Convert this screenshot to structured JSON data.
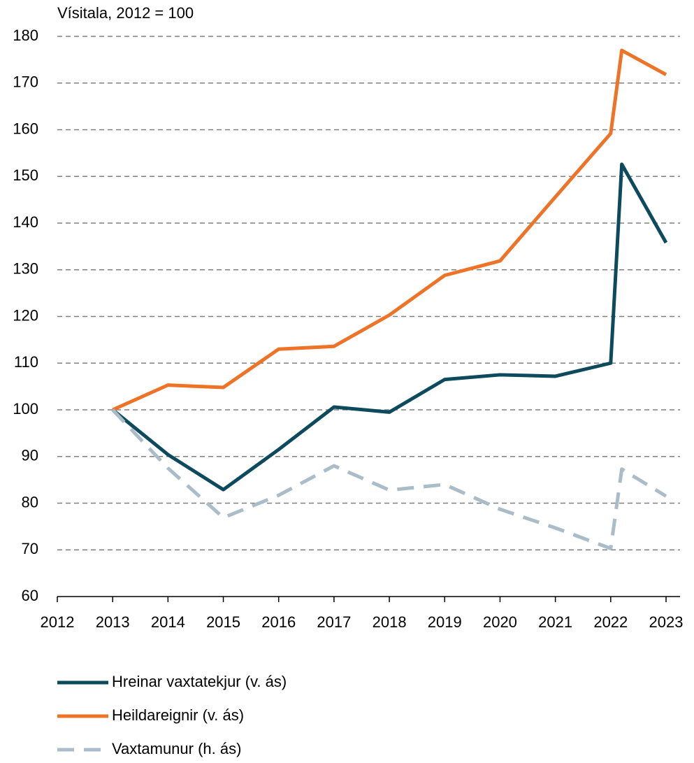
{
  "chart_data": {
    "type": "line",
    "y_axis_label": "Vísitala, 2012 = 100",
    "x": [
      2013,
      2014,
      2015,
      2016,
      2017,
      2018,
      2019,
      2020,
      2021,
      2022,
      2022.2,
      2023
    ],
    "series": [
      {
        "name": "Hreinar vaxtatekjur (v. ás)",
        "color": "#0d4a5e",
        "dash": false,
        "values": [
          100,
          90.4,
          82.9,
          91.5,
          100.6,
          99.5,
          106.5,
          107.5,
          107.2,
          110,
          152.6,
          135.8
        ]
      },
      {
        "name": "Heildareignir (v. ás)",
        "color": "#ee7326",
        "dash": false,
        "values": [
          100,
          105.3,
          104.8,
          113,
          113.6,
          120.3,
          128.8,
          131.9,
          145.6,
          159.2,
          177,
          171.8
        ]
      },
      {
        "name": "Vaxtamunur (h. ás)",
        "color": "#a9bcc8",
        "dash": true,
        "values": [
          100,
          87.5,
          76.9,
          81.7,
          88,
          82.8,
          84,
          78.7,
          74.7,
          70.3,
          87.3,
          81.5
        ]
      }
    ],
    "xlim": [
      2012,
      2023
    ],
    "xticks": [
      2012,
      2013,
      2014,
      2015,
      2016,
      2017,
      2018,
      2019,
      2020,
      2021,
      2022,
      2023
    ],
    "ylim": [
      60,
      180
    ],
    "yticks": [
      60,
      70,
      80,
      90,
      100,
      110,
      120,
      130,
      140,
      150,
      160,
      170,
      180
    ],
    "grid": true
  }
}
